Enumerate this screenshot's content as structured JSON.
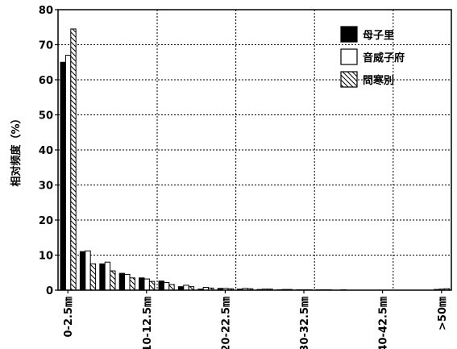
{
  "chart_data": {
    "type": "bar",
    "title": "",
    "xlabel": "",
    "ylabel": "相对频度（%）",
    "ylim": [
      0,
      80
    ],
    "yticks": [
      "0",
      "10",
      "20",
      "30",
      "40",
      "50",
      "60",
      "70",
      "80"
    ],
    "categories": [
      "0-2.5",
      "2.5-5",
      "5-7.5",
      "7.5-10",
      "10-12.5",
      "12.5-15",
      "15-17.5",
      "17.5-20",
      "20-22.5",
      "22.5-25",
      "25-27.5",
      "27.5-30",
      "30-32.5",
      "32.5-35",
      "35-37.5",
      "37.5-40",
      "40-42.5",
      "42.5-45",
      "45-47.5",
      ">50"
    ],
    "xtick_labels": [
      "0-2.5㎜",
      "10-12.5㎜",
      "20-22.5㎜",
      "30-32.5㎜",
      "40-42.5㎜",
      ">50㎜"
    ],
    "grid": true,
    "legend_position": "top-right",
    "series": [
      {
        "name": "母子里",
        "fill": "solid",
        "color": "#000000",
        "values": [
          65,
          11,
          7.5,
          4.8,
          3.5,
          2.6,
          1.0,
          0.3,
          0.5,
          0.3,
          0.2,
          0.1,
          0.1,
          0.1,
          0,
          0,
          0,
          0,
          0,
          0.2
        ]
      },
      {
        "name": "音威子府",
        "fill": "white",
        "color": "#ffffff",
        "values": [
          67,
          11.2,
          8,
          4.5,
          3.2,
          2.2,
          1.4,
          0.8,
          0.5,
          0.5,
          0.3,
          0.2,
          0.1,
          0.1,
          0.1,
          0,
          0,
          0,
          0,
          0.3
        ]
      },
      {
        "name": "問寒別",
        "fill": "hatch",
        "color": "#ffffff",
        "values": [
          74.5,
          7.5,
          5.5,
          3.5,
          2.5,
          1.6,
          1.0,
          0.6,
          0.4,
          0.4,
          0.3,
          0.2,
          0.1,
          0.1,
          0,
          0,
          0,
          0,
          0,
          0.4
        ]
      }
    ]
  }
}
